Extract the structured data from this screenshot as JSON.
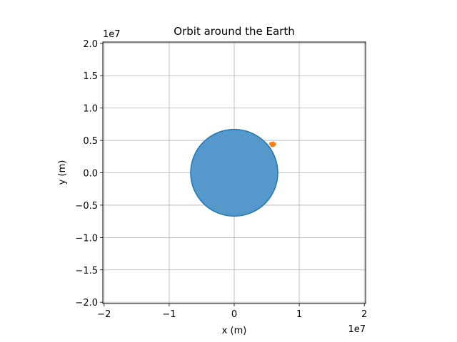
{
  "chart_data": {
    "type": "scatter",
    "title": "Orbit around the Earth",
    "xlabel": "x (m)",
    "ylabel": "y (m)",
    "x_offset_label": "1e7",
    "y_offset_label": "1e7",
    "xlim": [
      -20200000.0,
      20200000.0
    ],
    "ylim": [
      -20200000.0,
      20200000.0
    ],
    "x_ticks": [
      -20000000.0,
      -10000000.0,
      0,
      10000000.0,
      20000000.0
    ],
    "x_tick_labels": [
      "−2",
      "−1",
      "0",
      "1",
      "2"
    ],
    "y_ticks": [
      -20000000.0,
      -15000000.0,
      -10000000.0,
      -5000000.0,
      0,
      5000000.0,
      10000000.0,
      15000000.0,
      20000000.0
    ],
    "y_tick_labels": [
      "−2.0",
      "−1.5",
      "−1.0",
      "−0.5",
      "0.0",
      "0.5",
      "1.0",
      "1.5",
      "2.0"
    ],
    "grid": true,
    "earth": {
      "x": 0,
      "y": 0,
      "radius": 6700000.0,
      "fill": "#5599cc",
      "edge": "#1f77b4"
    },
    "orbit": {
      "color": "#ff7f0e",
      "x": [
        5600000.0,
        5750000.0,
        5900000.0,
        6050000.0,
        6200000.0,
        6000000.0,
        5800000.0,
        6100000.0
      ],
      "y": [
        4500000.0,
        4300000.0,
        4550000.0,
        4250000.0,
        4450000.0,
        4600000.0,
        4200000.0,
        4350000.0
      ]
    }
  }
}
